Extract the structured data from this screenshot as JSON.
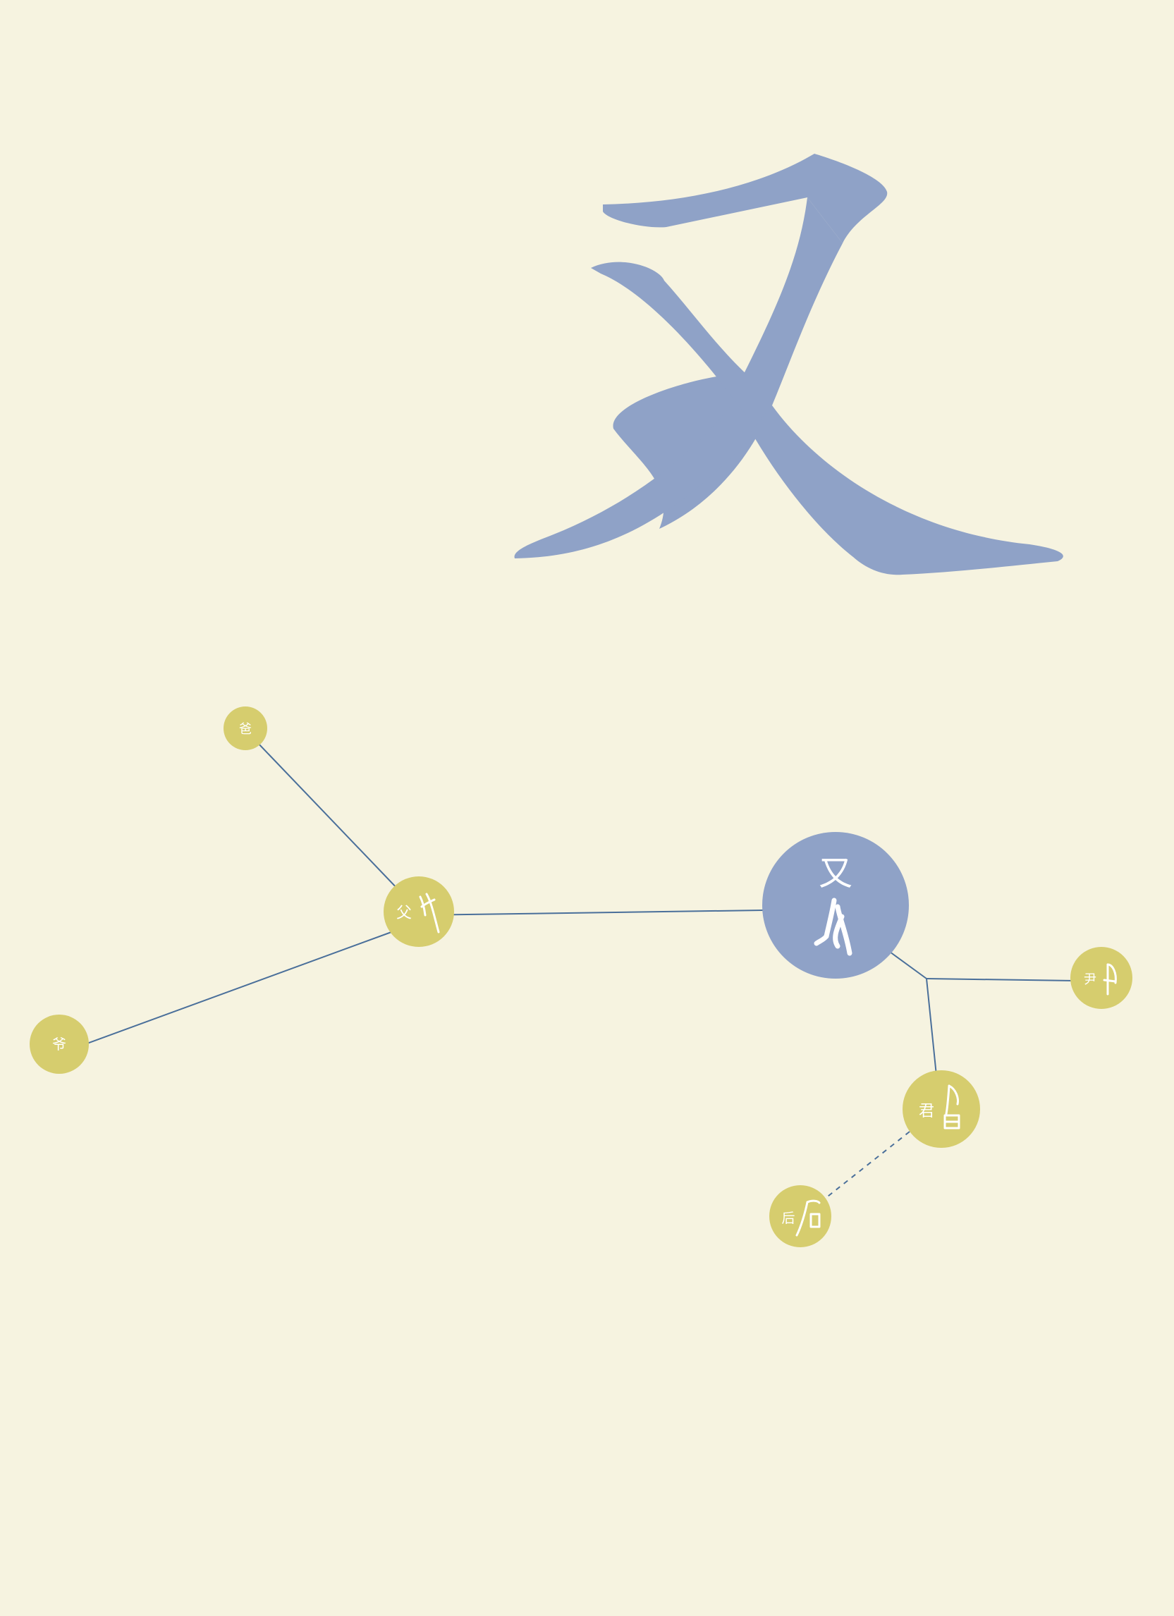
{
  "hero": {
    "character": "又",
    "color": "#8fa2c7"
  },
  "colors": {
    "background": "#f6f3e0",
    "main_node": "#8fa2c7",
    "child_node": "#d6cd6e",
    "edge": "#4a6f9a",
    "text": "#ffffff"
  },
  "nodes": {
    "center": {
      "label": "又",
      "icon": "ancient-you-glyph"
    },
    "fu": {
      "label": "父",
      "icon": "ancient-fu-glyph"
    },
    "ba": {
      "label": "爸"
    },
    "ye": {
      "label": "爷"
    },
    "yin": {
      "label": "尹",
      "icon": "ancient-yin-glyph"
    },
    "jun": {
      "label": "君",
      "icon": "ancient-jun-glyph"
    },
    "hou": {
      "label": "后",
      "icon": "ancient-hou-glyph"
    }
  }
}
